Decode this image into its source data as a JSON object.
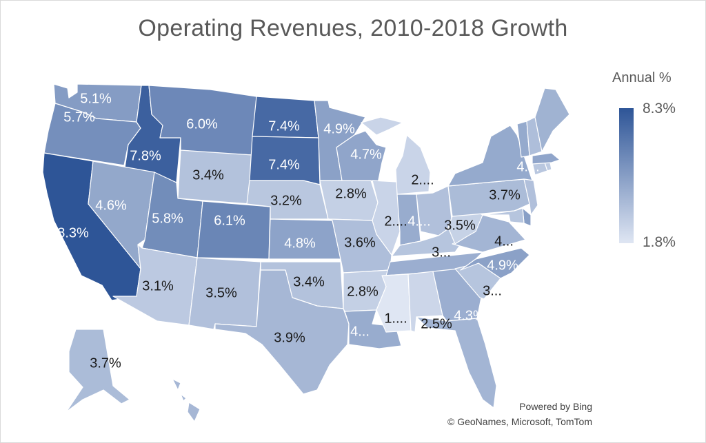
{
  "chart_data": {
    "type": "choropleth",
    "title": "Operating Revenues, 2010-2018 Growth",
    "legend": {
      "title": "Annual %",
      "max_label": "8.3%",
      "min_label": "1.8%",
      "max_value": 8.3,
      "min_value": 1.8,
      "color_max": "#2e5597",
      "color_min": "#dfe6f3",
      "placement": "right"
    },
    "states": [
      {
        "code": "WA",
        "name": "Washington",
        "value": 5.1,
        "label": "5.1%"
      },
      {
        "code": "OR",
        "name": "Oregon",
        "value": 5.7,
        "label": "5.7%"
      },
      {
        "code": "CA",
        "name": "California",
        "value": 8.3,
        "label": "8.3%"
      },
      {
        "code": "ID",
        "name": "Idaho",
        "value": 7.8,
        "label": "7.8%"
      },
      {
        "code": "NV",
        "name": "Nevada",
        "value": 4.6,
        "label": "4.6%"
      },
      {
        "code": "MT",
        "name": "Montana",
        "value": 6.0,
        "label": "6.0%"
      },
      {
        "code": "WY",
        "name": "Wyoming",
        "value": 3.4,
        "label": "3.4%"
      },
      {
        "code": "UT",
        "name": "Utah",
        "value": 5.8,
        "label": "5.8%"
      },
      {
        "code": "CO",
        "name": "Colorado",
        "value": 6.1,
        "label": "6.1%"
      },
      {
        "code": "AZ",
        "name": "Arizona",
        "value": 3.1,
        "label": "3.1%"
      },
      {
        "code": "NM",
        "name": "New Mexico",
        "value": 3.5,
        "label": "3.5%"
      },
      {
        "code": "ND",
        "name": "North Dakota",
        "value": 7.4,
        "label": "7.4%"
      },
      {
        "code": "SD",
        "name": "South Dakota",
        "value": 7.4,
        "label": "7.4%"
      },
      {
        "code": "NE",
        "name": "Nebraska",
        "value": 3.2,
        "label": "3.2%"
      },
      {
        "code": "KS",
        "name": "Kansas",
        "value": 4.8,
        "label": "4.8%"
      },
      {
        "code": "OK",
        "name": "Oklahoma",
        "value": 3.4,
        "label": "3.4%"
      },
      {
        "code": "TX",
        "name": "Texas",
        "value": 3.9,
        "label": "3.9%"
      },
      {
        "code": "MN",
        "name": "Minnesota",
        "value": 4.9,
        "label": "4.9%"
      },
      {
        "code": "IA",
        "name": "Iowa",
        "value": 2.8,
        "label": "2.8%"
      },
      {
        "code": "MO",
        "name": "Missouri",
        "value": 3.6,
        "label": "3.6%"
      },
      {
        "code": "AR",
        "name": "Arkansas",
        "value": 2.8,
        "label": "2.8%"
      },
      {
        "code": "LA",
        "name": "Louisiana",
        "value": 4.4,
        "label": "4..."
      },
      {
        "code": "WI",
        "name": "Wisconsin",
        "value": 4.7,
        "label": "4.7%"
      },
      {
        "code": "IL",
        "name": "Illinois",
        "value": 2.6,
        "label": "2...."
      },
      {
        "code": "MI",
        "name": "Michigan",
        "value": 2.6,
        "label": "2...."
      },
      {
        "code": "IN",
        "name": "Indiana",
        "value": 4.4,
        "label": "4...."
      },
      {
        "code": "OH",
        "name": "Ohio",
        "value": 3.5,
        "label": "3.5%"
      },
      {
        "code": "KY",
        "name": "Kentucky",
        "value": 3.3,
        "label": "3..."
      },
      {
        "code": "TN",
        "name": "Tennessee",
        "value": 4.3,
        "label": ""
      },
      {
        "code": "MS",
        "name": "Mississippi",
        "value": 1.8,
        "label": "1...."
      },
      {
        "code": "AL",
        "name": "Alabama",
        "value": 2.5,
        "label": "2.5%"
      },
      {
        "code": "GA",
        "name": "Georgia",
        "value": 4.3,
        "label": "4.3%"
      },
      {
        "code": "FL",
        "name": "Florida",
        "value": 4.0,
        "label": ""
      },
      {
        "code": "SC",
        "name": "South Carolina",
        "value": 3.3,
        "label": "3..."
      },
      {
        "code": "NC",
        "name": "North Carolina",
        "value": 4.9,
        "label": "4.9%"
      },
      {
        "code": "VA",
        "name": "Virginia",
        "value": 4.0,
        "label": "4..."
      },
      {
        "code": "WV",
        "name": "West Virginia",
        "value": 2.7,
        "label": ""
      },
      {
        "code": "PA",
        "name": "Pennsylvania",
        "value": 3.7,
        "label": "3.7%"
      },
      {
        "code": "NY",
        "name": "New York",
        "value": 4.5,
        "label": "4...."
      },
      {
        "code": "NJ",
        "name": "New Jersey",
        "value": 3.5,
        "label": ""
      },
      {
        "code": "DE",
        "name": "Delaware",
        "value": 5.0,
        "label": ""
      },
      {
        "code": "MD",
        "name": "Maryland",
        "value": 3.3,
        "label": ""
      },
      {
        "code": "CT",
        "name": "Connecticut",
        "value": 3.2,
        "label": ""
      },
      {
        "code": "RI",
        "name": "Rhode Island",
        "value": 3.0,
        "label": ""
      },
      {
        "code": "MA",
        "name": "Massachusetts",
        "value": 4.7,
        "label": ""
      },
      {
        "code": "VT",
        "name": "Vermont",
        "value": 4.5,
        "label": ""
      },
      {
        "code": "NH",
        "name": "New Hampshire",
        "value": 3.6,
        "label": ""
      },
      {
        "code": "ME",
        "name": "Maine",
        "value": 4.1,
        "label": ""
      },
      {
        "code": "AK",
        "name": "Alaska",
        "value": 3.7,
        "label": "3.7%"
      },
      {
        "code": "HI",
        "name": "Hawaii",
        "value": 3.9,
        "label": ""
      }
    ]
  },
  "attribution": {
    "powered_by": "Powered by Bing",
    "copyright": "© GeoNames, Microsoft, TomTom"
  }
}
